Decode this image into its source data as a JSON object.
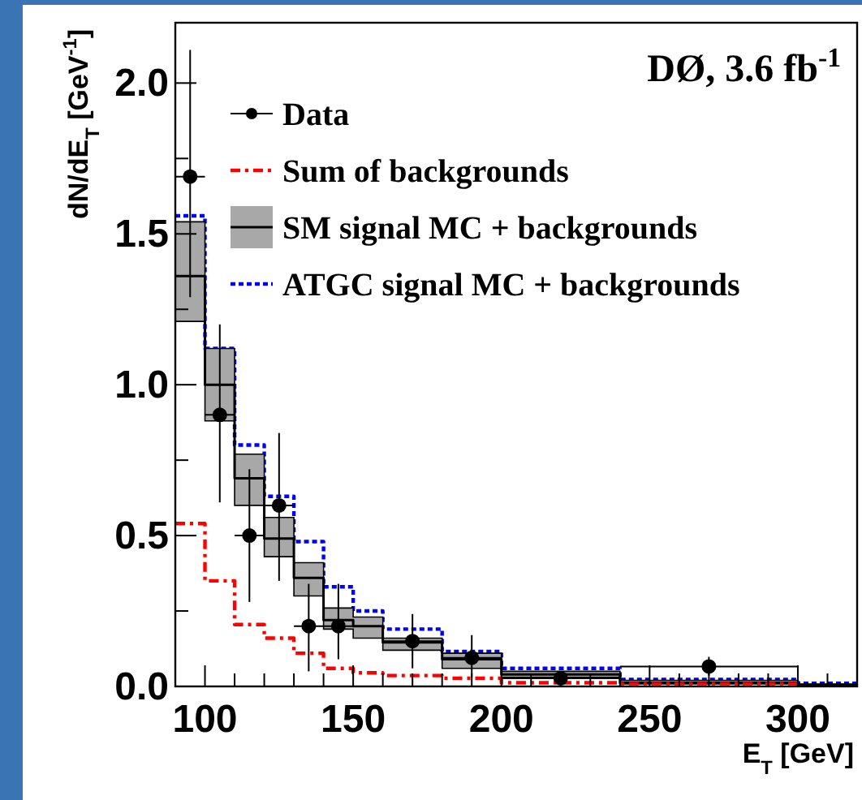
{
  "chart_data": {
    "type": "step",
    "xlabel": "E$_{T}$ [GeV]",
    "ylabel": "dN/dE$_{T}$ [GeV$^{-1}$]",
    "annotations": [
      "DØ, 3.6 fb$^{-1}$"
    ],
    "xlim": [
      90,
      320
    ],
    "xticks": [
      {
        "value": 90,
        "label": null
      },
      100,
      {
        "value": 110,
        "label": null
      },
      {
        "value": 120,
        "label": null
      },
      {
        "value": 130,
        "label": null
      },
      {
        "value": 140,
        "label": null
      },
      150,
      {
        "value": 160,
        "label": null
      },
      {
        "value": 170,
        "label": null
      },
      {
        "value": 180,
        "label": null
      },
      {
        "value": 190,
        "label": null
      },
      200,
      {
        "value": 210,
        "label": null
      },
      {
        "value": 220,
        "label": null
      },
      {
        "value": 230,
        "label": null
      },
      {
        "value": 240,
        "label": null
      },
      250,
      {
        "value": 260,
        "label": null
      },
      {
        "value": 270,
        "label": null
      },
      {
        "value": 280,
        "label": null
      },
      {
        "value": 290,
        "label": null
      },
      300,
      {
        "value": 310,
        "label": null
      }
    ],
    "ylim": [
      0,
      2.2
    ],
    "yticks": [
      {
        "value": 0,
        "label": "0.0"
      },
      {
        "value": 0.25,
        "label": null
      },
      {
        "value": 0.5,
        "label": "0.5"
      },
      {
        "value": 0.75,
        "label": null
      },
      {
        "value": 1,
        "label": "1.0"
      },
      {
        "value": 1.25,
        "label": null
      },
      {
        "value": 1.5,
        "label": "1.5"
      },
      {
        "value": 1.75,
        "label": null
      },
      {
        "value": 2,
        "label": "2.0"
      }
    ],
    "grid": false,
    "legend": "top right",
    "series": [
      {
        "name": "Data",
        "type": "scatter",
        "color": "#000000",
        "marker": "circle",
        "x": [
          95,
          105,
          115,
          125,
          135,
          145,
          170,
          190,
          220,
          270
        ],
        "values": [
          1.69,
          0.9,
          0.5,
          0.6,
          0.2,
          0.2,
          0.15,
          0.095,
          0.027,
          0.066
        ],
        "errors": [
          [
            1.29,
            2.11
          ],
          [
            0.61,
            1.2
          ],
          [
            0.28,
            0.72
          ],
          [
            0.35,
            0.84
          ],
          [
            0.05,
            0.34
          ],
          [
            0.09,
            0.34
          ],
          [
            0.06,
            0.24
          ],
          [
            0.03,
            0.17
          ],
          [
            0.015,
            0.04
          ],
          [
            0.036,
            0.098
          ]
        ],
        "xerrors": [
          5,
          5,
          5,
          5,
          5,
          5,
          10,
          10,
          20,
          30
        ]
      },
      {
        "name": "Sum of backgrounds",
        "color": "#ff0000",
        "line_style": "dashed",
        "x": [
          90,
          100,
          110,
          120,
          130,
          140,
          150,
          160,
          180,
          200,
          240,
          300
        ],
        "values": [
          0.54,
          0.35,
          0.205,
          0.16,
          0.11,
          0.06,
          0.045,
          0.036,
          0.027,
          0.012,
          0.009,
          0.009
        ]
      },
      {
        "name": "SM signal MC + backgrounds",
        "color": "#000000",
        "line_style": "solid",
        "x": [
          90,
          100,
          110,
          120,
          130,
          140,
          150,
          160,
          180,
          200,
          240,
          300,
          320
        ],
        "values": [
          1.36,
          1.0,
          0.69,
          0.49,
          0.36,
          0.22,
          0.2,
          0.146,
          0.09,
          0.04,
          0.012,
          0.005,
          0.005
        ],
        "lower": [
          1.21,
          0.88,
          0.6,
          0.43,
          0.3,
          0.19,
          0.16,
          0.12,
          0.06,
          0.03,
          0.008,
          0.003,
          0.003
        ],
        "upper": [
          1.54,
          1.12,
          0.77,
          0.56,
          0.41,
          0.26,
          0.23,
          0.16,
          0.11,
          0.05,
          0.02,
          0.008,
          0.008
        ]
      },
      {
        "name": "ATGC signal MC + backgrounds",
        "color": "#0000ff",
        "line_style": "dotted",
        "x": [
          90,
          100,
          110,
          120,
          130,
          140,
          150,
          160,
          180,
          200,
          240,
          300,
          320
        ],
        "values": [
          1.56,
          1.12,
          0.8,
          0.63,
          0.48,
          0.33,
          0.25,
          0.19,
          0.116,
          0.06,
          0.023,
          0.01,
          0.01
        ]
      }
    ]
  }
}
